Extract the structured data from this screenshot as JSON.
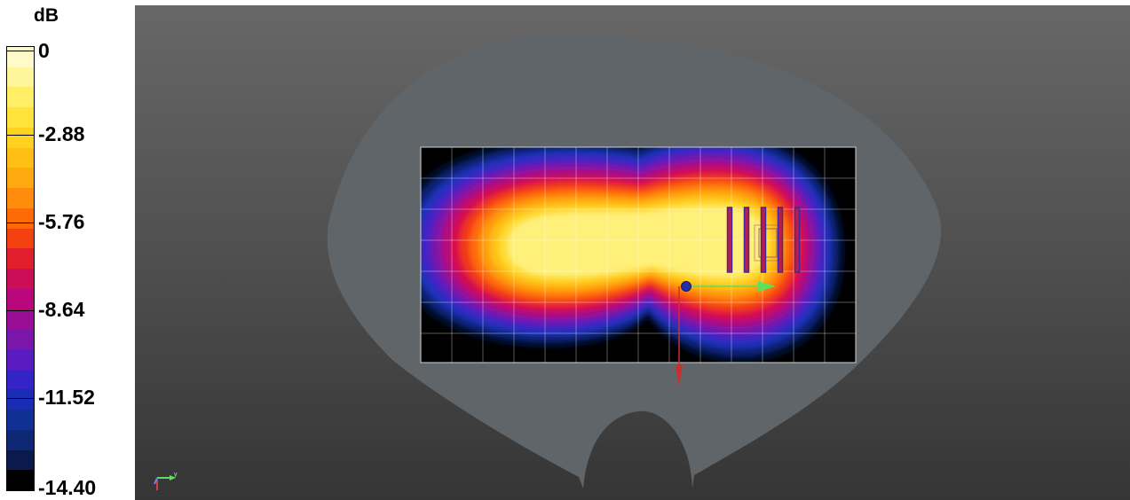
{
  "legend": {
    "unit": "dB",
    "ticks": [
      "0",
      "-2.88",
      "-5.76",
      "-8.64",
      "-11.52",
      "-14.40"
    ],
    "colors": [
      "#fffbc8",
      "#fff59a",
      "#ffee66",
      "#ffe33a",
      "#ffd21f",
      "#ffbf14",
      "#ffaa10",
      "#ff8c0c",
      "#ff6a08",
      "#f5400f",
      "#e01e2c",
      "#cc0e58",
      "#b8087c",
      "#9a0e96",
      "#7a16aa",
      "#5a1cc0",
      "#3424c8",
      "#1a2cb4",
      "#103096",
      "#0e2876",
      "#0a1a4c",
      "#000000"
    ]
  },
  "viewport": {
    "background_top": "#676767",
    "background_bottom": "#353535",
    "phantom_color": "#60656a",
    "grid_color": "#ffffff"
  },
  "icons": {
    "probe": "array-probe-icon",
    "axes": "axis-triad-icon",
    "origin": "origin-marker-icon"
  }
}
